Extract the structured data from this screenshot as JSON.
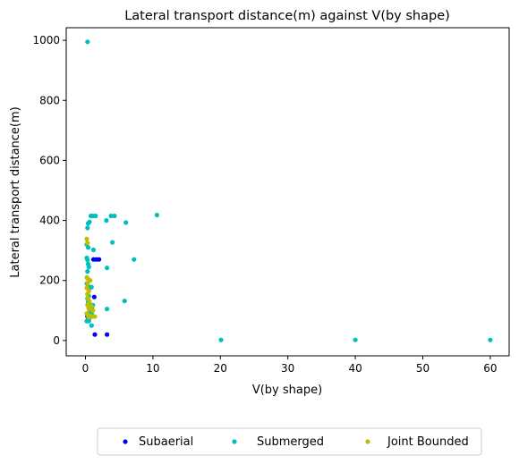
{
  "chart_data": {
    "type": "scatter",
    "title": "Lateral transport distance(m) against V(by shape)",
    "xlabel": "V(by shape)",
    "ylabel": "Lateral transport distance(m)",
    "xlim": [
      -2.85,
      62.8
    ],
    "ylim": [
      -51,
      1042
    ],
    "xticks": [
      0,
      10,
      20,
      30,
      40,
      50,
      60
    ],
    "yticks": [
      0,
      200,
      400,
      600,
      800,
      1000
    ],
    "grid": false,
    "legend_position": "bottom-center-outside",
    "series": [
      {
        "name": "Subaerial",
        "color": "#0000ee",
        "points": [
          [
            1.2,
            270
          ],
          [
            1.6,
            270
          ],
          [
            2.0,
            270
          ],
          [
            1.3,
            145
          ],
          [
            0.6,
            105
          ],
          [
            1.4,
            20
          ],
          [
            3.2,
            20
          ],
          [
            0.3,
            80
          ]
        ]
      },
      {
        "name": "Submerged",
        "color": "#00bfbf",
        "points": [
          [
            0.3,
            995
          ],
          [
            0.8,
            415
          ],
          [
            1.1,
            415
          ],
          [
            1.5,
            415
          ],
          [
            0.6,
            395
          ],
          [
            0.4,
            390
          ],
          [
            3.1,
            400
          ],
          [
            3.8,
            415
          ],
          [
            4.3,
            415
          ],
          [
            6.0,
            393
          ],
          [
            10.6,
            418
          ],
          [
            0.3,
            375
          ],
          [
            4.0,
            327
          ],
          [
            0.2,
            320
          ],
          [
            0.4,
            310
          ],
          [
            1.2,
            302
          ],
          [
            7.2,
            270
          ],
          [
            0.2,
            275
          ],
          [
            0.3,
            268
          ],
          [
            0.4,
            255
          ],
          [
            0.5,
            245
          ],
          [
            0.3,
            230
          ],
          [
            3.2,
            242
          ],
          [
            0.6,
            200
          ],
          [
            0.2,
            190
          ],
          [
            0.4,
            180
          ],
          [
            0.6,
            175
          ],
          [
            0.9,
            178
          ],
          [
            0.3,
            155
          ],
          [
            0.5,
            148
          ],
          [
            0.3,
            140
          ],
          [
            5.8,
            132
          ],
          [
            0.4,
            128
          ],
          [
            0.6,
            120
          ],
          [
            1.1,
            118
          ],
          [
            0.5,
            110
          ],
          [
            1.0,
            105
          ],
          [
            3.2,
            105
          ],
          [
            0.7,
            95
          ],
          [
            0.9,
            90
          ],
          [
            0.4,
            80
          ],
          [
            0.6,
            75
          ],
          [
            0.2,
            65
          ],
          [
            0.5,
            65
          ],
          [
            0.9,
            50
          ],
          [
            20.1,
            2
          ],
          [
            40.0,
            2
          ],
          [
            60.0,
            2
          ]
        ]
      },
      {
        "name": "Joint Bounded",
        "color": "#bfbf00",
        "points": [
          [
            0.2,
            338
          ],
          [
            0.3,
            325
          ],
          [
            0.2,
            210
          ],
          [
            0.4,
            205
          ],
          [
            0.7,
            200
          ],
          [
            0.3,
            190
          ],
          [
            0.2,
            175
          ],
          [
            0.5,
            165
          ],
          [
            0.3,
            155
          ],
          [
            0.4,
            140
          ],
          [
            0.6,
            130
          ],
          [
            0.3,
            118
          ],
          [
            0.9,
            115
          ],
          [
            0.5,
            105
          ],
          [
            1.1,
            100
          ],
          [
            0.2,
            90
          ],
          [
            0.4,
            85
          ],
          [
            0.7,
            82
          ],
          [
            1.0,
            80
          ],
          [
            1.4,
            80
          ],
          [
            0.5,
            78
          ]
        ]
      }
    ]
  }
}
